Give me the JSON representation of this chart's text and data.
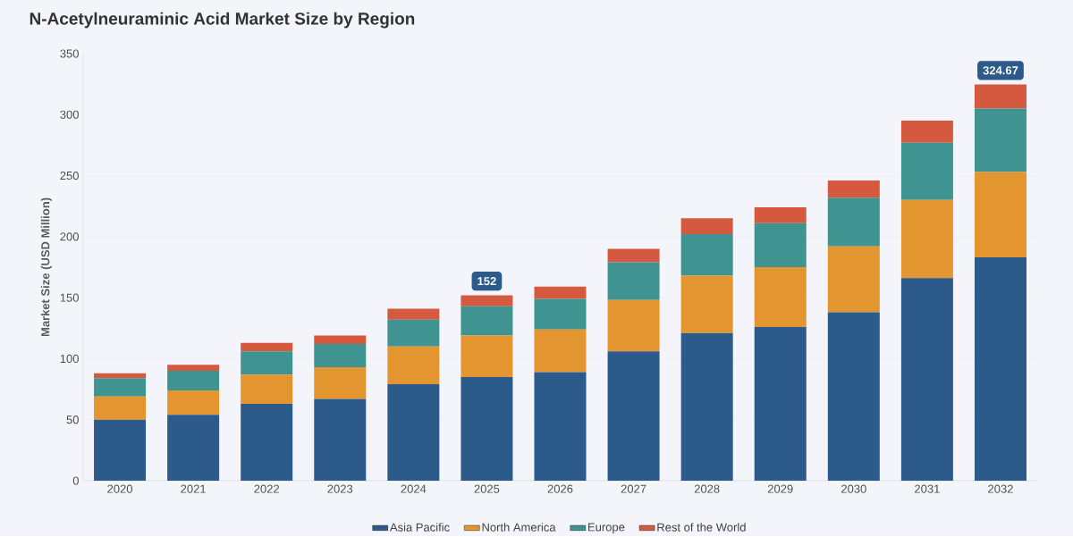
{
  "chart_data": {
    "type": "bar",
    "title": "N-Acetylneuraminic Acid Market Size by Region",
    "ylabel": "Market Size (USD Million)",
    "categories": [
      "2020",
      "2021",
      "2022",
      "2023",
      "2024",
      "2025",
      "2026",
      "2027",
      "2028",
      "2029",
      "2030",
      "2031",
      "2032"
    ],
    "series": [
      {
        "name": "Asia Pacific",
        "color": "#2c5a8a",
        "values": [
          50,
          54,
          63,
          67,
          79,
          85,
          89,
          106,
          121,
          126,
          138,
          166,
          183
        ]
      },
      {
        "name": "North America",
        "color": "#e3962f",
        "values": [
          19,
          20,
          24,
          26,
          31,
          34,
          35,
          42,
          47,
          49,
          54,
          64,
          70
        ]
      },
      {
        "name": "Europe",
        "color": "#3f9492",
        "values": [
          15,
          16,
          19,
          19,
          22,
          24,
          25,
          31,
          34,
          36,
          40,
          47,
          52
        ]
      },
      {
        "name": "Rest of the World",
        "color": "#d5593f",
        "values": [
          4,
          5,
          7,
          7,
          9,
          9,
          10,
          11,
          13,
          13,
          14,
          18,
          19.67
        ]
      }
    ],
    "stacked": true,
    "totals": [
      null,
      null,
      null,
      null,
      null,
      "152",
      null,
      null,
      null,
      null,
      null,
      null,
      "324.67"
    ],
    "ylim": [
      0,
      350
    ],
    "yticks": [
      0,
      50,
      100,
      150,
      200,
      250,
      300,
      350
    ],
    "grid": "y",
    "legend": "bottom"
  }
}
